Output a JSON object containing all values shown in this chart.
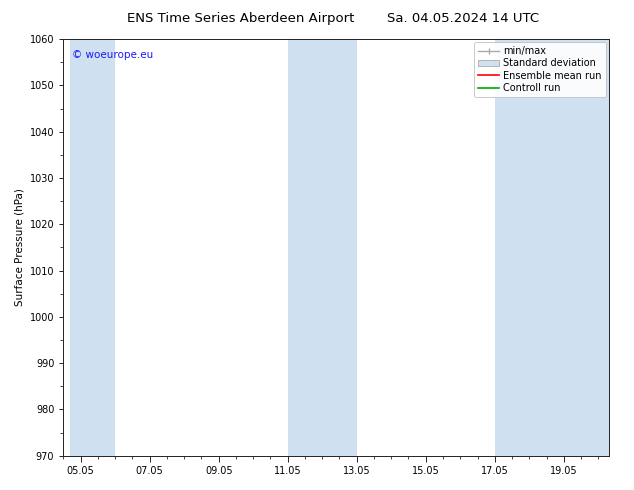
{
  "title": "ENS Time Series Aberdeen Airport",
  "title2": "Sa. 04.05.2024 14 UTC",
  "ylabel": "Surface Pressure (hPa)",
  "ylim": [
    970,
    1060
  ],
  "yticks": [
    970,
    980,
    990,
    1000,
    1010,
    1020,
    1030,
    1040,
    1050,
    1060
  ],
  "xtick_labels": [
    "05.05",
    "07.05",
    "09.05",
    "11.05",
    "13.05",
    "15.05",
    "17.05",
    "19.05"
  ],
  "xtick_positions": [
    0,
    2,
    4,
    6,
    8,
    10,
    12,
    14
  ],
  "xlim": [
    -0.3,
    15.3
  ],
  "background_color": "#ffffff",
  "plot_bg_color": "#ffffff",
  "shaded_bands": [
    {
      "x_start": -0.3,
      "x_end": 1.0,
      "color": "#cfe0f0",
      "alpha": 1.0
    },
    {
      "x_start": 6.0,
      "x_end": 8.0,
      "color": "#cfe0f0",
      "alpha": 1.0
    },
    {
      "x_start": 12.0,
      "x_end": 15.3,
      "color": "#cfe0f0",
      "alpha": 1.0
    }
  ],
  "minmax_color": "#aaaaaa",
  "stddev_color": "#cfe0f0",
  "stddev_edge_color": "#aaaaaa",
  "ensemble_mean_color": "#ff0000",
  "control_run_color": "#00aa00",
  "watermark_text": "© woeurope.eu",
  "watermark_color": "#1a1aff",
  "watermark_fontsize": 7.5,
  "title_fontsize": 9.5,
  "axis_fontsize": 7,
  "legend_fontsize": 7,
  "ylabel_fontsize": 7.5
}
